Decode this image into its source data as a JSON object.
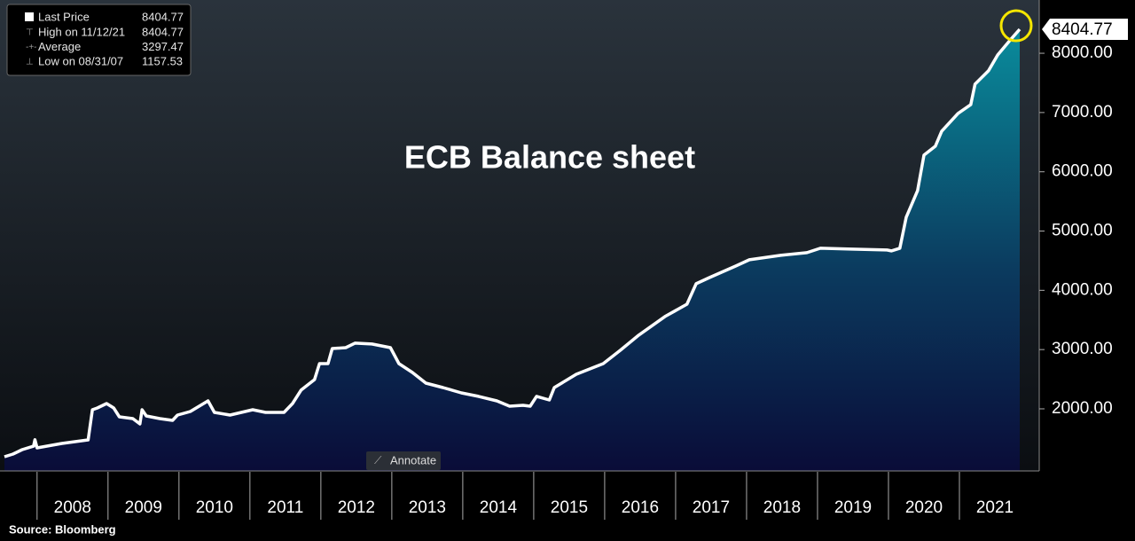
{
  "chart_data": {
    "type": "area",
    "title": "ECB Balance sheet",
    "source": "Source: Bloomberg",
    "button": "Annotate",
    "x": [
      2007.54,
      2007.66,
      2007.79,
      2007.95,
      2007.97,
      2008.0,
      2008.35,
      2008.72,
      2008.78,
      2008.85,
      2008.98,
      2009.08,
      2009.16,
      2009.35,
      2009.45,
      2009.48,
      2009.54,
      2009.73,
      2009.91,
      2009.98,
      2010.16,
      2010.41,
      2010.5,
      2010.72,
      2011.04,
      2011.22,
      2011.48,
      2011.6,
      2011.72,
      2011.91,
      2011.98,
      2012.1,
      2012.16,
      2012.35,
      2012.48,
      2012.72,
      2012.98,
      2013.1,
      2013.29,
      2013.48,
      2013.72,
      2013.98,
      2014.22,
      2014.48,
      2014.66,
      2014.85,
      2014.95,
      2015.04,
      2015.22,
      2015.29,
      2015.6,
      2015.98,
      2016.22,
      2016.48,
      2016.85,
      2017.16,
      2017.29,
      2017.48,
      2017.85,
      2018.04,
      2018.48,
      2018.85,
      2019.04,
      2019.48,
      2019.98,
      2020.04,
      2020.16,
      2020.25,
      2020.41,
      2020.5,
      2020.66,
      2020.75,
      2020.98,
      2021.16,
      2021.22,
      2021.41,
      2021.54,
      2021.72,
      2021.85
    ],
    "series": [
      {
        "name": "Last Price",
        "color": "#ffffff",
        "values": [
          1192,
          1237,
          1311,
          1370,
          1479,
          1341,
          1416,
          1476,
          1985,
          2015,
          2090,
          2015,
          1865,
          1835,
          1746,
          1985,
          1880,
          1835,
          1805,
          1895,
          1955,
          2135,
          1940,
          1895,
          1985,
          1940,
          1940,
          2090,
          2315,
          2494,
          2763,
          2763,
          3018,
          3033,
          3108,
          3093,
          3033,
          2763,
          2614,
          2434,
          2359,
          2269,
          2210,
          2135,
          2045,
          2060,
          2045,
          2210,
          2150,
          2359,
          2584,
          2763,
          2988,
          3243,
          3557,
          3766,
          4111,
          4216,
          4410,
          4515,
          4590,
          4635,
          4710,
          4695,
          4680,
          4665,
          4710,
          5234,
          5683,
          6281,
          6431,
          6686,
          6985,
          7135,
          7479,
          7704,
          7973,
          8228,
          8404.77
        ]
      }
    ],
    "stats": [
      {
        "name": "High on 11/12/21",
        "value": 8404.77
      },
      {
        "name": "Average",
        "value": 3297.47
      },
      {
        "name": "Low on 08/31/07",
        "value": 1157.53
      }
    ],
    "xlim": [
      2007.54,
      2022.125
    ],
    "xticks": [
      2008,
      2009,
      2010,
      2011,
      2012,
      2013,
      2014,
      2015,
      2016,
      2017,
      2018,
      2019,
      2020,
      2021
    ],
    "ylim": [
      1000,
      8800
    ],
    "yticks": [
      {
        "value": 2000,
        "label": "2000.00"
      },
      {
        "value": 3000,
        "label": "3000.00"
      },
      {
        "value": 4000,
        "label": "4000.00"
      },
      {
        "value": 5000,
        "label": "5000.00"
      },
      {
        "value": 6000,
        "label": "6000.00"
      },
      {
        "value": 7000,
        "label": "7000.00"
      },
      {
        "value": 8000,
        "label": "8000.00"
      }
    ]
  }
}
